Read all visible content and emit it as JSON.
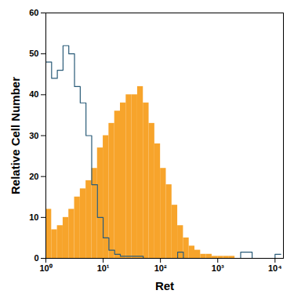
{
  "chart_data": {
    "type": "histogram",
    "x_label": "Ret",
    "y_label": "Relative Cell Number",
    "log": "x",
    "grid": false,
    "xlim": [
      1,
      14000
    ],
    "ylim": [
      0,
      60
    ],
    "xticks": [
      {
        "value": 1,
        "label": "10⁰"
      },
      {
        "value": 10,
        "label": "10¹"
      },
      {
        "value": 100,
        "label": "10²"
      },
      {
        "value": 1000,
        "label": "10³"
      },
      {
        "value": 10000,
        "label": "10⁴"
      }
    ],
    "yticks": [
      0,
      10,
      20,
      30,
      40,
      50,
      60
    ],
    "bins": [
      1,
      1.259,
      1.585,
      1.995,
      2.512,
      3.162,
      3.981,
      5.012,
      6.31,
      7.943,
      10,
      12.59,
      15.85,
      19.95,
      25.12,
      31.62,
      39.81,
      50.12,
      63.1,
      79.43,
      100,
      125.9,
      158.5,
      199.5,
      251.2,
      316.2,
      398.1,
      501.2,
      631,
      794.3,
      1000,
      1259,
      1585,
      1995,
      2512,
      3162,
      3981,
      5012,
      6310,
      7943,
      10000,
      12589
    ],
    "series": [
      {
        "type": "bar",
        "color": "#f7a42b",
        "values": [
          12,
          7,
          8,
          10,
          12,
          15,
          17,
          19,
          22,
          27,
          30,
          33,
          36,
          38,
          40,
          40,
          42,
          38,
          33,
          28,
          22,
          18,
          13,
          8,
          5,
          3,
          2,
          1,
          1,
          0.5,
          0.5,
          0.5,
          0.5,
          0,
          0,
          0,
          0,
          0,
          0,
          0,
          0
        ]
      },
      {
        "type": "line",
        "color": "#2a5b78",
        "values": [
          48,
          44,
          46,
          52,
          50,
          42,
          38,
          30,
          18,
          10,
          5,
          2,
          1,
          0.5,
          0.5,
          0.5,
          0.5,
          0,
          0,
          0,
          0,
          0,
          0,
          1.5,
          0,
          0,
          0,
          0,
          0,
          0,
          0,
          0,
          0,
          0,
          1.5,
          1.5,
          0,
          0,
          0,
          0,
          1
        ]
      }
    ]
  }
}
